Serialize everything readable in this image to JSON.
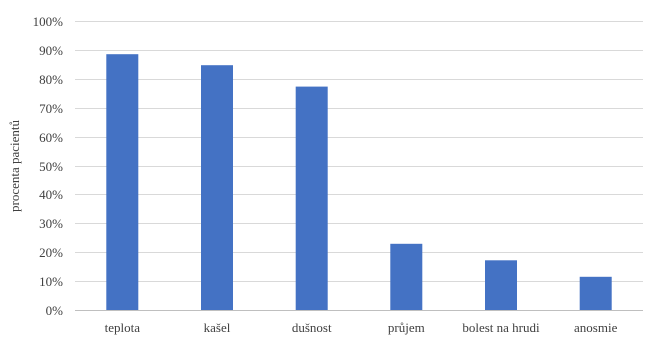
{
  "chart_data": {
    "type": "bar",
    "title": "",
    "xlabel": "",
    "ylabel": "procenta pacientů",
    "ylim": [
      0,
      100
    ],
    "y_ticks": [
      0,
      10,
      20,
      30,
      40,
      50,
      60,
      70,
      80,
      90,
      100
    ],
    "y_tick_labels": [
      "0%",
      "10%",
      "20%",
      "30%",
      "40%",
      "50%",
      "60%",
      "70%",
      "80%",
      "90%",
      "100%"
    ],
    "categories": [
      "teplota",
      "kašel",
      "dušnost",
      "průjem",
      "bolest na hrudi",
      "anosmie"
    ],
    "values": [
      88.5,
      84.7,
      77.3,
      22.9,
      17.2,
      11.5
    ],
    "value_unit": "%",
    "grid": true,
    "legend": "none",
    "bar_color": "#4472c4"
  }
}
